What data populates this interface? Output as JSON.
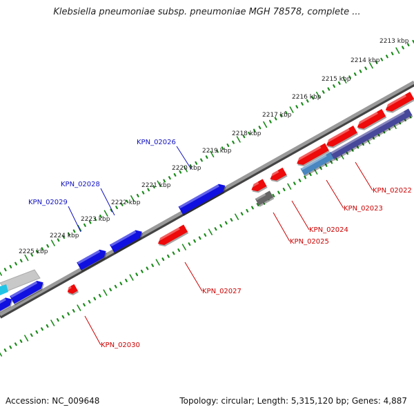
{
  "title": "Klebsiella pneumoniae subsp. pneumoniae MGH 78578, complete ...",
  "footer": {
    "accession": "Accession: NC_009648",
    "topology": "Topology: circular; Length: 5,315,120 bp; Genes: 4,887"
  },
  "colors": {
    "forward_gene": "#1010e0",
    "reverse_gene": "#ee0a0a",
    "forward_label": "#1010c0",
    "reverse_label": "#cc0000",
    "ruler": "#1a8a1a",
    "backbone": "#777777"
  },
  "ruler_ticks": [
    {
      "label": "2213 kbp"
    },
    {
      "label": "2214 kbp"
    },
    {
      "label": "2215 kbp"
    },
    {
      "label": "2216 kbp"
    },
    {
      "label": "2217 kbp"
    },
    {
      "label": "2218 kbp"
    },
    {
      "label": "2219 kbp"
    },
    {
      "label": "2220 kbp"
    },
    {
      "label": "2221 kbp"
    },
    {
      "label": "2222 kbp"
    },
    {
      "label": "2223 kbp"
    },
    {
      "label": "2224 kbp"
    },
    {
      "label": "2225 kbp"
    }
  ],
  "gene_labels": [
    {
      "name": "KPN_02026",
      "strand": "forward"
    },
    {
      "name": "KPN_02028",
      "strand": "forward"
    },
    {
      "name": "KPN_02029",
      "strand": "forward"
    },
    {
      "name": "KPN_02022",
      "strand": "reverse"
    },
    {
      "name": "KPN_02023",
      "strand": "reverse"
    },
    {
      "name": "KPN_02024",
      "strand": "reverse"
    },
    {
      "name": "KPN_02025",
      "strand": "reverse"
    },
    {
      "name": "KPN_02027",
      "strand": "reverse"
    },
    {
      "name": "KPN_02030",
      "strand": "reverse"
    }
  ]
}
